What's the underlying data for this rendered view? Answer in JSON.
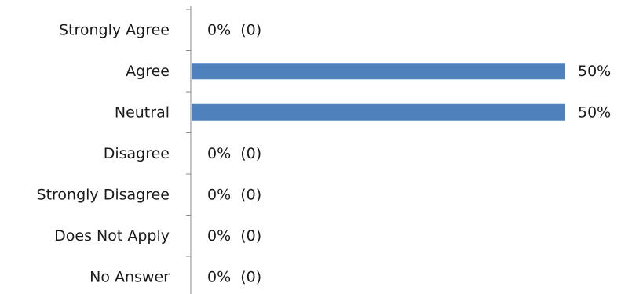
{
  "chart_data": {
    "type": "bar",
    "orientation": "horizontal",
    "categories": [
      "Strongly Agree",
      "Agree",
      "Neutral",
      "Disagree",
      "Strongly Disagree",
      "Does Not Apply",
      "No Answer"
    ],
    "values": [
      0,
      50,
      50,
      0,
      0,
      0,
      0
    ],
    "value_labels": [
      "0%  (0)",
      "50%",
      "50%",
      "0%  (0)",
      "0%  (0)",
      "0%  (0)",
      "0%  (0)"
    ],
    "xlim": [
      0,
      50
    ],
    "bar_color": "#4f81bd",
    "grid": false,
    "legend": "none"
  }
}
